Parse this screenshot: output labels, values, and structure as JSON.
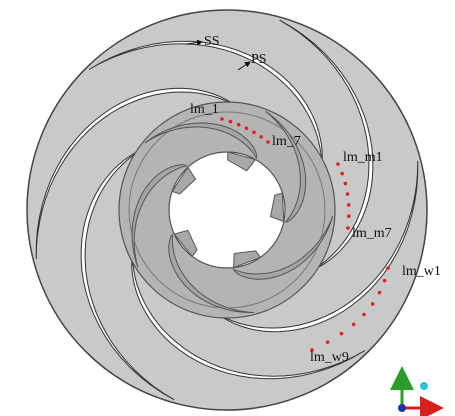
{
  "labels": {
    "ss": "SS",
    "ps": "PS",
    "lm_1": "lm_1",
    "lm_7": "lm_7",
    "lm_m1": "lm_m1",
    "lm_m7": "lm_m7",
    "lm_w1": "lm_w1",
    "lm_w9": "lm_w9"
  }
}
